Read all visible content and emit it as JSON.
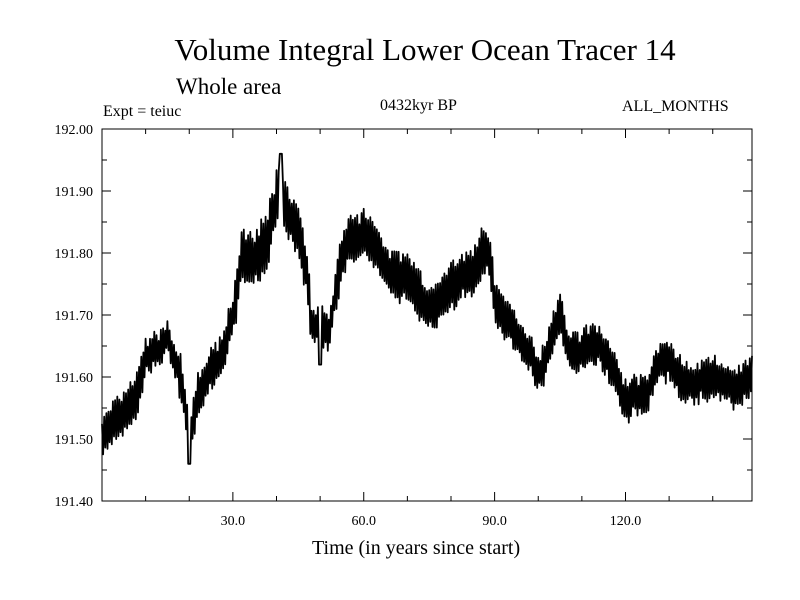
{
  "chart_data": {
    "type": "line",
    "title": "Volume Integral Lower Ocean Tracer 14",
    "subtitle": "Whole area",
    "experiment_label": "Expt = teiuc",
    "period_label": "0432kyr BP",
    "months_label": "ALL_MONTHS",
    "xlabel": "Time (in years since start)",
    "ylabel": "",
    "xlim": [
      0,
      149
    ],
    "ylim": [
      191.4,
      192.0
    ],
    "x_ticks": [
      30,
      60,
      90,
      120
    ],
    "x_tick_labels": [
      "30.0",
      "60.0",
      "90.0",
      "120.0"
    ],
    "x_minor_step": 10,
    "y_ticks": [
      191.4,
      191.5,
      191.6,
      191.7,
      191.8,
      191.9,
      192.0
    ],
    "y_tick_labels": [
      "191.40",
      "191.50",
      "191.60",
      "191.70",
      "191.80",
      "191.90",
      "192.00"
    ],
    "samples_per_year": 4,
    "series": [
      {
        "name": "Volume Integral Lower Ocean Tracer 14",
        "color": "#000000",
        "x_start": 0,
        "x_end": 149,
        "envelope": {
          "years": [
            0,
            2,
            5,
            8,
            10,
            12,
            15,
            18,
            20,
            22,
            25,
            28,
            30,
            32,
            35,
            38,
            40,
            42,
            45,
            47,
            48,
            50,
            52,
            55,
            57,
            60,
            63,
            66,
            70,
            74,
            76,
            78,
            82,
            85,
            88,
            89,
            90,
            92,
            95,
            98,
            100,
            102,
            104,
            105,
            107,
            110,
            113,
            116,
            118,
            120,
            122,
            125,
            127,
            130,
            133,
            136,
            140,
            145,
            149
          ],
          "centers": [
            191.5,
            191.52,
            191.54,
            191.57,
            191.63,
            191.64,
            191.66,
            191.6,
            191.5,
            191.57,
            191.61,
            191.64,
            191.7,
            191.79,
            191.79,
            191.82,
            191.89,
            191.87,
            191.84,
            191.76,
            191.69,
            191.68,
            191.67,
            191.8,
            191.82,
            191.83,
            191.81,
            191.77,
            191.76,
            191.72,
            191.71,
            191.73,
            191.76,
            191.77,
            191.81,
            191.79,
            191.72,
            191.7,
            191.67,
            191.64,
            191.6,
            191.64,
            191.68,
            191.7,
            191.64,
            191.64,
            191.66,
            191.63,
            191.6,
            191.56,
            191.57,
            191.57,
            191.62,
            191.63,
            191.59,
            191.59,
            191.6,
            191.58,
            191.6
          ],
          "amplitudes": [
            0.035,
            0.035,
            0.035,
            0.04,
            0.03,
            0.03,
            0.03,
            0.035,
            0.03,
            0.035,
            0.035,
            0.035,
            0.04,
            0.045,
            0.045,
            0.05,
            0.045,
            0.045,
            0.04,
            0.04,
            0.035,
            0.035,
            0.035,
            0.04,
            0.04,
            0.04,
            0.04,
            0.04,
            0.04,
            0.04,
            0.04,
            0.04,
            0.04,
            0.04,
            0.045,
            0.045,
            0.035,
            0.035,
            0.035,
            0.035,
            0.035,
            0.035,
            0.035,
            0.035,
            0.035,
            0.035,
            0.035,
            0.035,
            0.035,
            0.035,
            0.035,
            0.035,
            0.035,
            0.035,
            0.035,
            0.035,
            0.035,
            0.035,
            0.035
          ]
        },
        "peaks": [
          [
            41,
            191.96
          ],
          [
            50,
            191.62
          ],
          [
            20,
            191.46
          ]
        ]
      }
    ]
  }
}
